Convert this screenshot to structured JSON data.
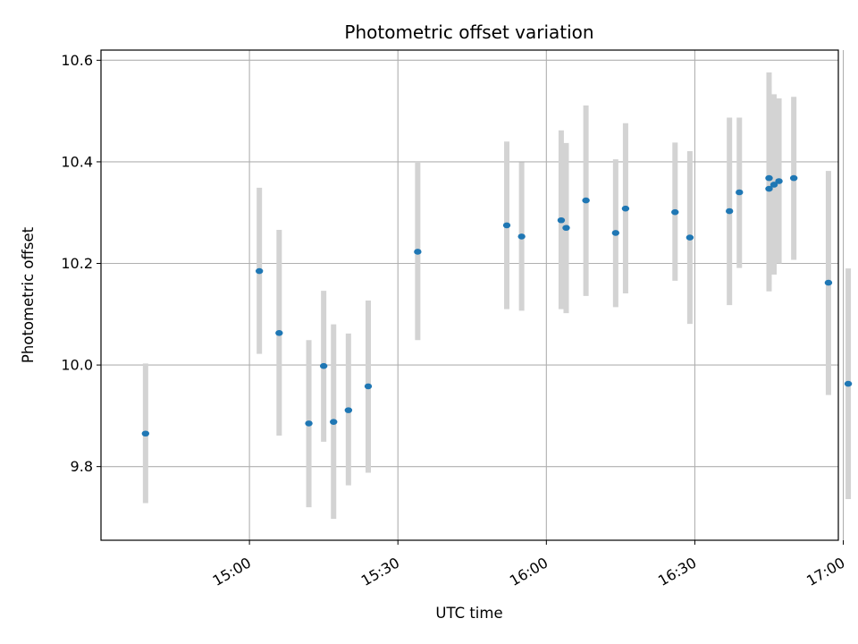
{
  "chart_data": {
    "type": "scatter",
    "title": "Photometric offset variation",
    "xlabel": "UTC time",
    "ylabel": "Photometric offset",
    "x_unit": "UTC time (HH:MM)",
    "xlim": [
      "14:30",
      "16:59"
    ],
    "ylim": [
      9.655,
      10.62
    ],
    "x_ticks": [
      "15:00",
      "15:30",
      "16:00",
      "16:30",
      "17:00"
    ],
    "y_ticks": [
      "9.8",
      "10.0",
      "10.2",
      "10.4",
      "10.6"
    ],
    "grid": true,
    "legend": "none",
    "colors": {
      "point": "#1f77b4",
      "errorbar": "#d3d3d3",
      "grid": "#b0b0b0"
    },
    "points": [
      {
        "x": "14:39",
        "y": 9.865,
        "lo": 9.728,
        "hi": 10.003
      },
      {
        "x": "15:02",
        "y": 10.185,
        "lo": 10.022,
        "hi": 10.349
      },
      {
        "x": "15:06",
        "y": 10.063,
        "lo": 9.861,
        "hi": 10.266
      },
      {
        "x": "15:12",
        "y": 9.885,
        "lo": 9.72,
        "hi": 10.049
      },
      {
        "x": "15:15",
        "y": 9.998,
        "lo": 9.849,
        "hi": 10.146
      },
      {
        "x": "15:17",
        "y": 9.888,
        "lo": 9.697,
        "hi": 10.08
      },
      {
        "x": "15:20",
        "y": 9.911,
        "lo": 9.763,
        "hi": 10.062
      },
      {
        "x": "15:24",
        "y": 9.958,
        "lo": 9.788,
        "hi": 10.127
      },
      {
        "x": "15:34",
        "y": 10.223,
        "lo": 10.049,
        "hi": 10.4
      },
      {
        "x": "15:52",
        "y": 10.275,
        "lo": 10.11,
        "hi": 10.44
      },
      {
        "x": "15:55",
        "y": 10.253,
        "lo": 10.107,
        "hi": 10.399
      },
      {
        "x": "16:03",
        "y": 10.285,
        "lo": 10.11,
        "hi": 10.462
      },
      {
        "x": "16:04",
        "y": 10.27,
        "lo": 10.102,
        "hi": 10.437
      },
      {
        "x": "16:08",
        "y": 10.324,
        "lo": 10.136,
        "hi": 10.511
      },
      {
        "x": "16:14",
        "y": 10.26,
        "lo": 10.114,
        "hi": 10.405
      },
      {
        "x": "16:16",
        "y": 10.308,
        "lo": 10.141,
        "hi": 10.476
      },
      {
        "x": "16:26",
        "y": 10.301,
        "lo": 10.166,
        "hi": 10.438
      },
      {
        "x": "16:29",
        "y": 10.251,
        "lo": 10.081,
        "hi": 10.421
      },
      {
        "x": "16:37",
        "y": 10.303,
        "lo": 10.118,
        "hi": 10.487
      },
      {
        "x": "16:39",
        "y": 10.34,
        "lo": 10.191,
        "hi": 10.487
      },
      {
        "x": "16:45",
        "y": 10.368,
        "lo": 10.16,
        "hi": 10.576
      },
      {
        "x": "16:45",
        "y": 10.347,
        "lo": 10.145,
        "hi": 10.548
      },
      {
        "x": "16:46",
        "y": 10.355,
        "lo": 10.178,
        "hi": 10.533
      },
      {
        "x": "16:47",
        "y": 10.362,
        "lo": 10.2,
        "hi": 10.525
      },
      {
        "x": "16:50",
        "y": 10.368,
        "lo": 10.207,
        "hi": 10.528
      },
      {
        "x": "16:57",
        "y": 10.162,
        "lo": 9.941,
        "hi": 10.382
      },
      {
        "x": "17:01",
        "y": 9.963,
        "lo": 9.736,
        "hi": 10.19
      }
    ]
  }
}
